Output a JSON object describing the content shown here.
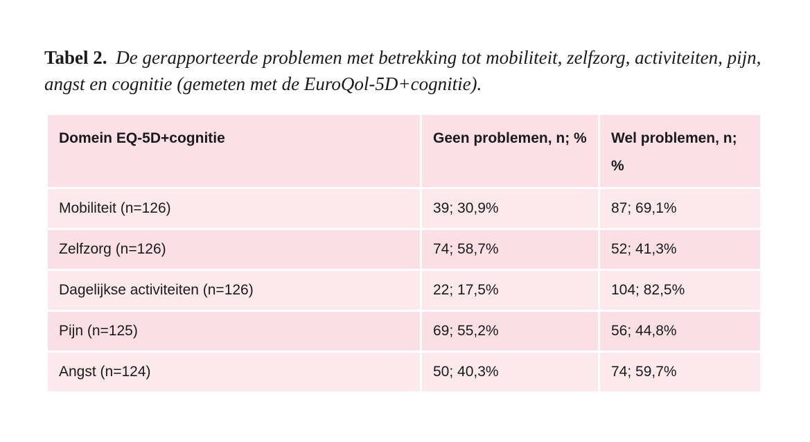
{
  "caption": {
    "label": "Tabel 2.",
    "text": "De gerapporteerde problemen met betrekking tot mobiliteit, zelfzorg, activiteiten, pijn, angst en cognitie (gemeten met de EuroQol-5D+cognitie)."
  },
  "table": {
    "headers": [
      "Domein EQ-5D+cognitie",
      "Geen problemen, n; %",
      "Wel  problemen, n; %"
    ],
    "rows": [
      [
        "Mobiliteit (n=126)",
        "39; 30,9%",
        "87; 69,1%"
      ],
      [
        "Zelfzorg (n=126)",
        "74; 58,7%",
        "52; 41,3%"
      ],
      [
        "Dagelijkse activiteiten (n=126)",
        "22; 17,5%",
        "104; 82,5%"
      ],
      [
        "Pijn (n=125)",
        "69; 55,2%",
        "56; 44,8%"
      ],
      [
        "Angst (n=124)",
        "50; 40,3%",
        "74; 59,7%"
      ]
    ]
  },
  "colors": {
    "header_bg": "#fbe0e7",
    "row_light": "#fce9ed",
    "row_dark": "#fae0e6"
  }
}
